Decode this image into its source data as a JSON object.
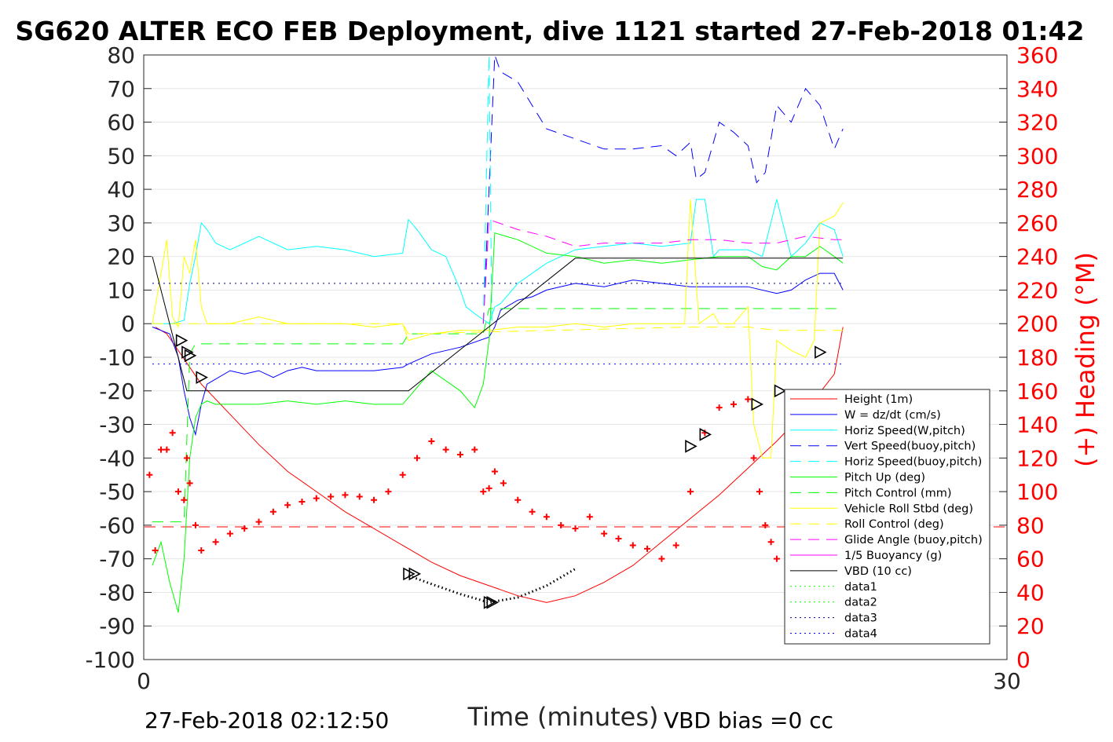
{
  "chart_data": {
    "type": "line",
    "title": "SG620 ALTER ECO FEB Deployment, dive 1121 started 27-Feb-2018 01:42",
    "xlabel": "Time (minutes)",
    "ylabel_right": "(+) Heading (°M)",
    "xlim": [
      0,
      30
    ],
    "ylim_left": [
      -100,
      80
    ],
    "ylim_right": [
      0,
      360
    ],
    "x_ticks": [
      "0",
      "30"
    ],
    "y_ticks_left": [
      "80",
      "70",
      "60",
      "50",
      "40",
      "30",
      "20",
      "10",
      "0",
      "-10",
      "-20",
      "-30",
      "-40",
      "-50",
      "-60",
      "-70",
      "-80",
      "-90",
      "-100"
    ],
    "y_ticks_right": [
      "360",
      "340",
      "320",
      "300",
      "280",
      "260",
      "240",
      "220",
      "200",
      "180",
      "160",
      "140",
      "120",
      "100",
      "80",
      "60",
      "40",
      "20",
      "0"
    ],
    "grid": true,
    "legend_position": "bottom-right",
    "footer_left": "27-Feb-2018 02:12:50",
    "footer_right": "VBD bias =0 cc",
    "legend": [
      {
        "label": "Height (1m)",
        "color": "#ff0000",
        "style": "solid"
      },
      {
        "label": "W = dz/dt (cm/s)",
        "color": "#0000ff",
        "style": "solid"
      },
      {
        "label": "Horiz Speed(W,pitch)",
        "color": "#00ffff",
        "style": "solid"
      },
      {
        "label": "Vert Speed(buoy,pitch)",
        "color": "#0000ff",
        "style": "dashed"
      },
      {
        "label": "Horiz Speed(buoy,pitch)",
        "color": "#00ffff",
        "style": "dashed"
      },
      {
        "label": "Pitch Up (deg)",
        "color": "#00ff00",
        "style": "solid"
      },
      {
        "label": "Pitch Control (mm)",
        "color": "#00ff00",
        "style": "dashed"
      },
      {
        "label": "Vehicle Roll Stbd (deg)",
        "color": "#ffff00",
        "style": "solid"
      },
      {
        "label": "Roll Control (deg)",
        "color": "#ffff00",
        "style": "dashed"
      },
      {
        "label": "Glide Angle (buoy,pitch)",
        "color": "#ff00ff",
        "style": "dashed"
      },
      {
        "label": "1/5 Buoyancy (g)",
        "color": "#ff00ff",
        "style": "solid"
      },
      {
        "label": "VBD (10 cc)",
        "color": "#000000",
        "style": "solid"
      },
      {
        "label": "data1",
        "color": "#00ff00",
        "style": "dotted"
      },
      {
        "label": "data2",
        "color": "#00ff00",
        "style": "dotted"
      },
      {
        "label": "data3",
        "color": "#000080",
        "style": "dotted"
      },
      {
        "label": "data4",
        "color": "#0000ff",
        "style": "dotted"
      }
    ],
    "series": [
      {
        "name": "Height (1m)",
        "color": "#ff0000",
        "dash": "",
        "width": 1,
        "x": [
          0.4,
          0.8,
          1.2,
          1.6,
          2.0,
          3.0,
          4.0,
          5.0,
          6.0,
          7.0,
          8.0,
          9.0,
          10.0,
          11.0,
          12.0,
          13.0,
          14.0,
          15.0,
          16.0,
          17.0,
          18.0,
          19.0,
          20.0,
          21.0,
          22.0,
          23.0,
          24.0,
          24.3
        ],
        "y": [
          -1,
          -3,
          -8,
          -13,
          -18,
          -27,
          -36,
          -44,
          -50,
          -56,
          -61,
          -66,
          -71,
          -75,
          -78,
          -81,
          -83,
          -81,
          -77,
          -72,
          -65,
          -58,
          -51,
          -43,
          -35,
          -26,
          -15,
          -1
        ]
      },
      {
        "name": "W = dz/dt (cm/s)",
        "color": "#0000ff",
        "dash": "",
        "width": 1,
        "x": [
          0.3,
          0.6,
          0.9,
          1.2,
          1.4,
          1.6,
          1.8,
          2.0,
          2.2,
          2.4,
          3.0,
          3.5,
          4.0,
          4.5,
          5.0,
          5.5,
          6.0,
          7.0,
          8.0,
          9.0,
          9.2,
          10.0,
          11.0,
          12.0,
          12.2,
          12.4,
          13.0,
          13.5,
          14.0,
          15.0,
          16.0,
          17.0,
          18.0,
          19.0,
          20.0,
          21.0,
          22.0,
          22.5,
          23.0,
          23.5,
          24.0,
          24.3
        ],
        "y": [
          -1,
          -2,
          -3,
          -10,
          -20,
          -28,
          -33,
          -24,
          -18,
          -17,
          -14,
          -15,
          -14,
          -16,
          -14,
          -13,
          -14,
          -14,
          -14,
          -13,
          -12,
          -9,
          -7,
          -4,
          -1,
          4,
          7,
          8,
          10,
          12,
          11,
          13,
          12,
          11,
          11,
          11,
          9,
          10,
          13,
          15,
          15,
          10
        ]
      },
      {
        "name": "Horiz Speed(W,pitch)",
        "color": "#00ffff",
        "dash": "",
        "width": 1,
        "x": [
          0.3,
          1.0,
          1.4,
          1.6,
          1.8,
          2.0,
          2.2,
          2.5,
          3.0,
          4.0,
          5.0,
          6.0,
          7.0,
          8.0,
          9.0,
          9.2,
          9.5,
          10.0,
          10.5,
          11.0,
          11.2,
          11.5,
          12.0,
          12.2,
          12.4,
          13.0,
          14.0,
          15.0,
          16.0,
          17.0,
          18.0,
          19.0,
          19.2,
          19.5,
          19.8,
          20.0,
          20.5,
          21.0,
          21.5,
          22.0,
          22.5,
          23.0,
          23.5,
          24.0,
          24.3
        ],
        "y": [
          0,
          0,
          1,
          12,
          20,
          30,
          28,
          24,
          22,
          26,
          22,
          23,
          22,
          20,
          21,
          31,
          28,
          22,
          20,
          10,
          5,
          3,
          0,
          5,
          6,
          12,
          18,
          22,
          23,
          24,
          23,
          24,
          37,
          37,
          20,
          22,
          22,
          22,
          20,
          37,
          20,
          24,
          30,
          28,
          20
        ]
      },
      {
        "name": "Vert Speed(buoy,pitch)",
        "color": "#0000ff",
        "dash": "14 9",
        "width": 1,
        "x": [
          11.8,
          12.0,
          12.2,
          12.4,
          13.0,
          13.5,
          14.0,
          15.0,
          16.0,
          17.0,
          18.0,
          18.5,
          19.0,
          19.2,
          19.5,
          20.0,
          20.5,
          21.0,
          21.3,
          21.6,
          22.0,
          22.5,
          23.0,
          23.5,
          24.0,
          24.3
        ],
        "y": [
          0,
          40,
          80,
          75,
          72,
          65,
          58,
          55,
          52,
          52,
          53,
          50,
          54,
          43,
          45,
          60,
          57,
          53,
          42,
          45,
          65,
          60,
          70,
          65,
          52,
          58
        ]
      },
      {
        "name": "Horiz Speed(buoy,pitch)",
        "color": "#00ffff",
        "dash": "14 9",
        "width": 1,
        "x": [
          11.8,
          12.0,
          12.1
        ],
        "y": [
          0,
          80,
          0
        ]
      },
      {
        "name": "Pitch Up (deg)",
        "color": "#00ff00",
        "dash": "",
        "width": 1,
        "x": [
          0.3,
          0.6,
          0.9,
          1.2,
          1.4,
          1.6,
          1.8,
          2.0,
          2.2,
          2.5,
          3.0,
          4.0,
          5.0,
          6.0,
          7.0,
          8.0,
          9.0,
          9.2,
          10.0,
          11.0,
          11.5,
          11.8,
          12.0,
          12.2,
          13.0,
          14.0,
          15.0,
          16.0,
          17.0,
          18.0,
          19.0,
          20.0,
          21.0,
          21.5,
          22.0,
          22.5,
          23.0,
          23.5,
          24.0,
          24.3
        ],
        "y": [
          -72,
          -65,
          -77,
          -86,
          -70,
          -40,
          -28,
          -24,
          -23,
          -24,
          -24,
          -24,
          -23,
          -24,
          -23,
          -24,
          -24,
          -22,
          -14,
          -20,
          -25,
          -18,
          -5,
          27,
          25,
          21,
          20,
          18,
          19,
          18,
          19,
          20,
          20,
          17,
          16,
          20,
          20,
          23,
          20,
          18
        ]
      },
      {
        "name": "Pitch Control (mm)",
        "color": "#00ff00",
        "dash": "14 9",
        "width": 1,
        "x": [
          0.3,
          1.2,
          1.4,
          1.6,
          1.8,
          9.0,
          9.2,
          11.8,
          12.0,
          24.3
        ],
        "y": [
          -59,
          -59,
          -59,
          -9,
          -6,
          -6,
          -3,
          -3,
          4.5,
          4.5
        ]
      },
      {
        "name": "Vehicle Roll Stbd (deg)",
        "color": "#ffff00",
        "dash": "",
        "width": 1,
        "x": [
          0.3,
          0.8,
          1.0,
          1.2,
          1.4,
          1.6,
          1.8,
          2.0,
          2.2,
          3.0,
          4.0,
          5.0,
          6.0,
          7.0,
          8.0,
          9.0,
          9.2,
          10.0,
          11.0,
          12.0,
          13.0,
          14.0,
          15.0,
          16.0,
          17.0,
          18.0,
          18.8,
          19.0,
          19.3,
          19.8,
          20.0,
          20.5,
          21.0,
          21.2,
          21.5,
          21.8,
          22.0,
          22.5,
          23.0,
          23.3,
          23.5,
          24.0,
          24.3
        ],
        "y": [
          0,
          25,
          2,
          -1,
          20,
          15,
          25,
          5,
          0,
          0,
          2,
          0,
          0,
          0,
          -1,
          0,
          -5,
          -3,
          -2,
          -2,
          -1,
          -1,
          0,
          -1,
          0,
          0,
          0,
          37,
          0,
          3,
          0,
          0,
          5,
          -30,
          -40,
          -40,
          -5,
          -8,
          -10,
          -5,
          30,
          32,
          36
        ]
      },
      {
        "name": "Roll Control (deg)",
        "color": "#ffff00",
        "dash": "14 9",
        "width": 1,
        "x": [
          0.3,
          9.0,
          9.2,
          19.0,
          20.5,
          21.0,
          22.0,
          23.0,
          23.3,
          24.3
        ],
        "y": [
          0,
          0,
          -3,
          -1,
          -1,
          -1,
          -2,
          -2,
          -2,
          -2
        ]
      },
      {
        "name": "Glide Angle (buoy,pitch)",
        "color": "#ff00ff",
        "dash": "14 9",
        "width": 1,
        "x": [
          11.8,
          12.0,
          13.0,
          14.0,
          15.0,
          16.0,
          17.0,
          18.0,
          19.0,
          20.0,
          21.0,
          22.0,
          23.0,
          24.0,
          24.3
        ],
        "y": [
          0,
          31,
          28,
          26,
          23,
          24,
          24,
          24,
          25,
          25,
          24,
          24,
          26,
          25,
          25
        ]
      },
      {
        "name": "1/5 Buoyancy (g)",
        "color": "#ff00ff",
        "dash": "",
        "width": 1,
        "x": [],
        "y": []
      },
      {
        "name": "VBD (10 cc)",
        "color": "#000000",
        "dash": "",
        "width": 1,
        "x": [
          0.3,
          1.5,
          9.2,
          15.0,
          24.3
        ],
        "y": [
          20,
          -20,
          -20,
          19.5,
          19.5
        ]
      },
      {
        "name": "data1",
        "color": "#00ff00",
        "dash": "2 5",
        "width": 1,
        "x": [],
        "y": []
      },
      {
        "name": "data2",
        "color": "#00ff00",
        "dash": "2 5",
        "width": 1,
        "x": [],
        "y": []
      },
      {
        "name": "data3",
        "color": "#000080",
        "dash": "2 5",
        "width": 1,
        "x": [
          0.3,
          24.3
        ],
        "y": [
          12,
          12
        ]
      },
      {
        "name": "data4",
        "color": "#0000ff",
        "dash": "2 5",
        "width": 1,
        "x": [
          0.3,
          24.3
        ],
        "y": [
          -12,
          -12
        ]
      }
    ],
    "height_dotted_segment": {
      "color": "#000000",
      "x": [
        9.2,
        10.0,
        11.0,
        12.0,
        13.0,
        14.0,
        15.0
      ],
      "y": [
        -75,
        -77.5,
        -80.5,
        -83,
        -81.5,
        -78,
        -73
      ]
    },
    "reference_line": {
      "name": "red-dashed-reference",
      "y": -60.5,
      "color": "#ff0000",
      "dash": "14 9"
    },
    "heading_markers": {
      "color": "#ff0000",
      "x": [
        0.2,
        0.4,
        0.6,
        0.8,
        1.0,
        1.2,
        1.4,
        1.5,
        1.6,
        1.8,
        2.0,
        2.5,
        3.0,
        3.5,
        4.0,
        4.5,
        5.0,
        5.5,
        6.0,
        6.5,
        7.0,
        7.5,
        8.0,
        8.5,
        9.0,
        9.5,
        10.0,
        10.5,
        11.0,
        11.5,
        11.8,
        12.0,
        12.2,
        12.5,
        13.0,
        13.5,
        14.0,
        14.5,
        15.0,
        15.5,
        16.0,
        16.5,
        17.0,
        17.5,
        18.0,
        18.5,
        19.0,
        19.5,
        20.0,
        20.5,
        21.0,
        21.2,
        21.4,
        21.6,
        21.8,
        22.0,
        22.5,
        23.0,
        23.3
      ],
      "y": [
        110,
        65,
        125,
        125,
        135,
        100,
        95,
        120,
        105,
        80,
        65,
        70,
        75,
        78,
        82,
        88,
        92,
        94,
        96,
        97,
        98,
        97,
        95,
        100,
        110,
        120,
        130,
        125,
        122,
        125,
        100,
        102,
        112,
        105,
        95,
        88,
        85,
        80,
        78,
        85,
        75,
        72,
        68,
        66,
        60,
        68,
        100,
        135,
        150,
        152,
        155,
        120,
        100,
        80,
        70,
        60,
        50,
        45,
        40
      ]
    },
    "triangle_markers": {
      "x": [
        1.3,
        1.5,
        1.6,
        2.0,
        9.2,
        9.4,
        12.0,
        12.1,
        19.0,
        19.5,
        21.3,
        22.1,
        23.5
      ],
      "y": [
        -5,
        -8.5,
        -9.5,
        -16,
        -74.5,
        -74.5,
        -83,
        -83,
        -36.5,
        -33,
        -24,
        -20,
        -8.5
      ]
    }
  }
}
